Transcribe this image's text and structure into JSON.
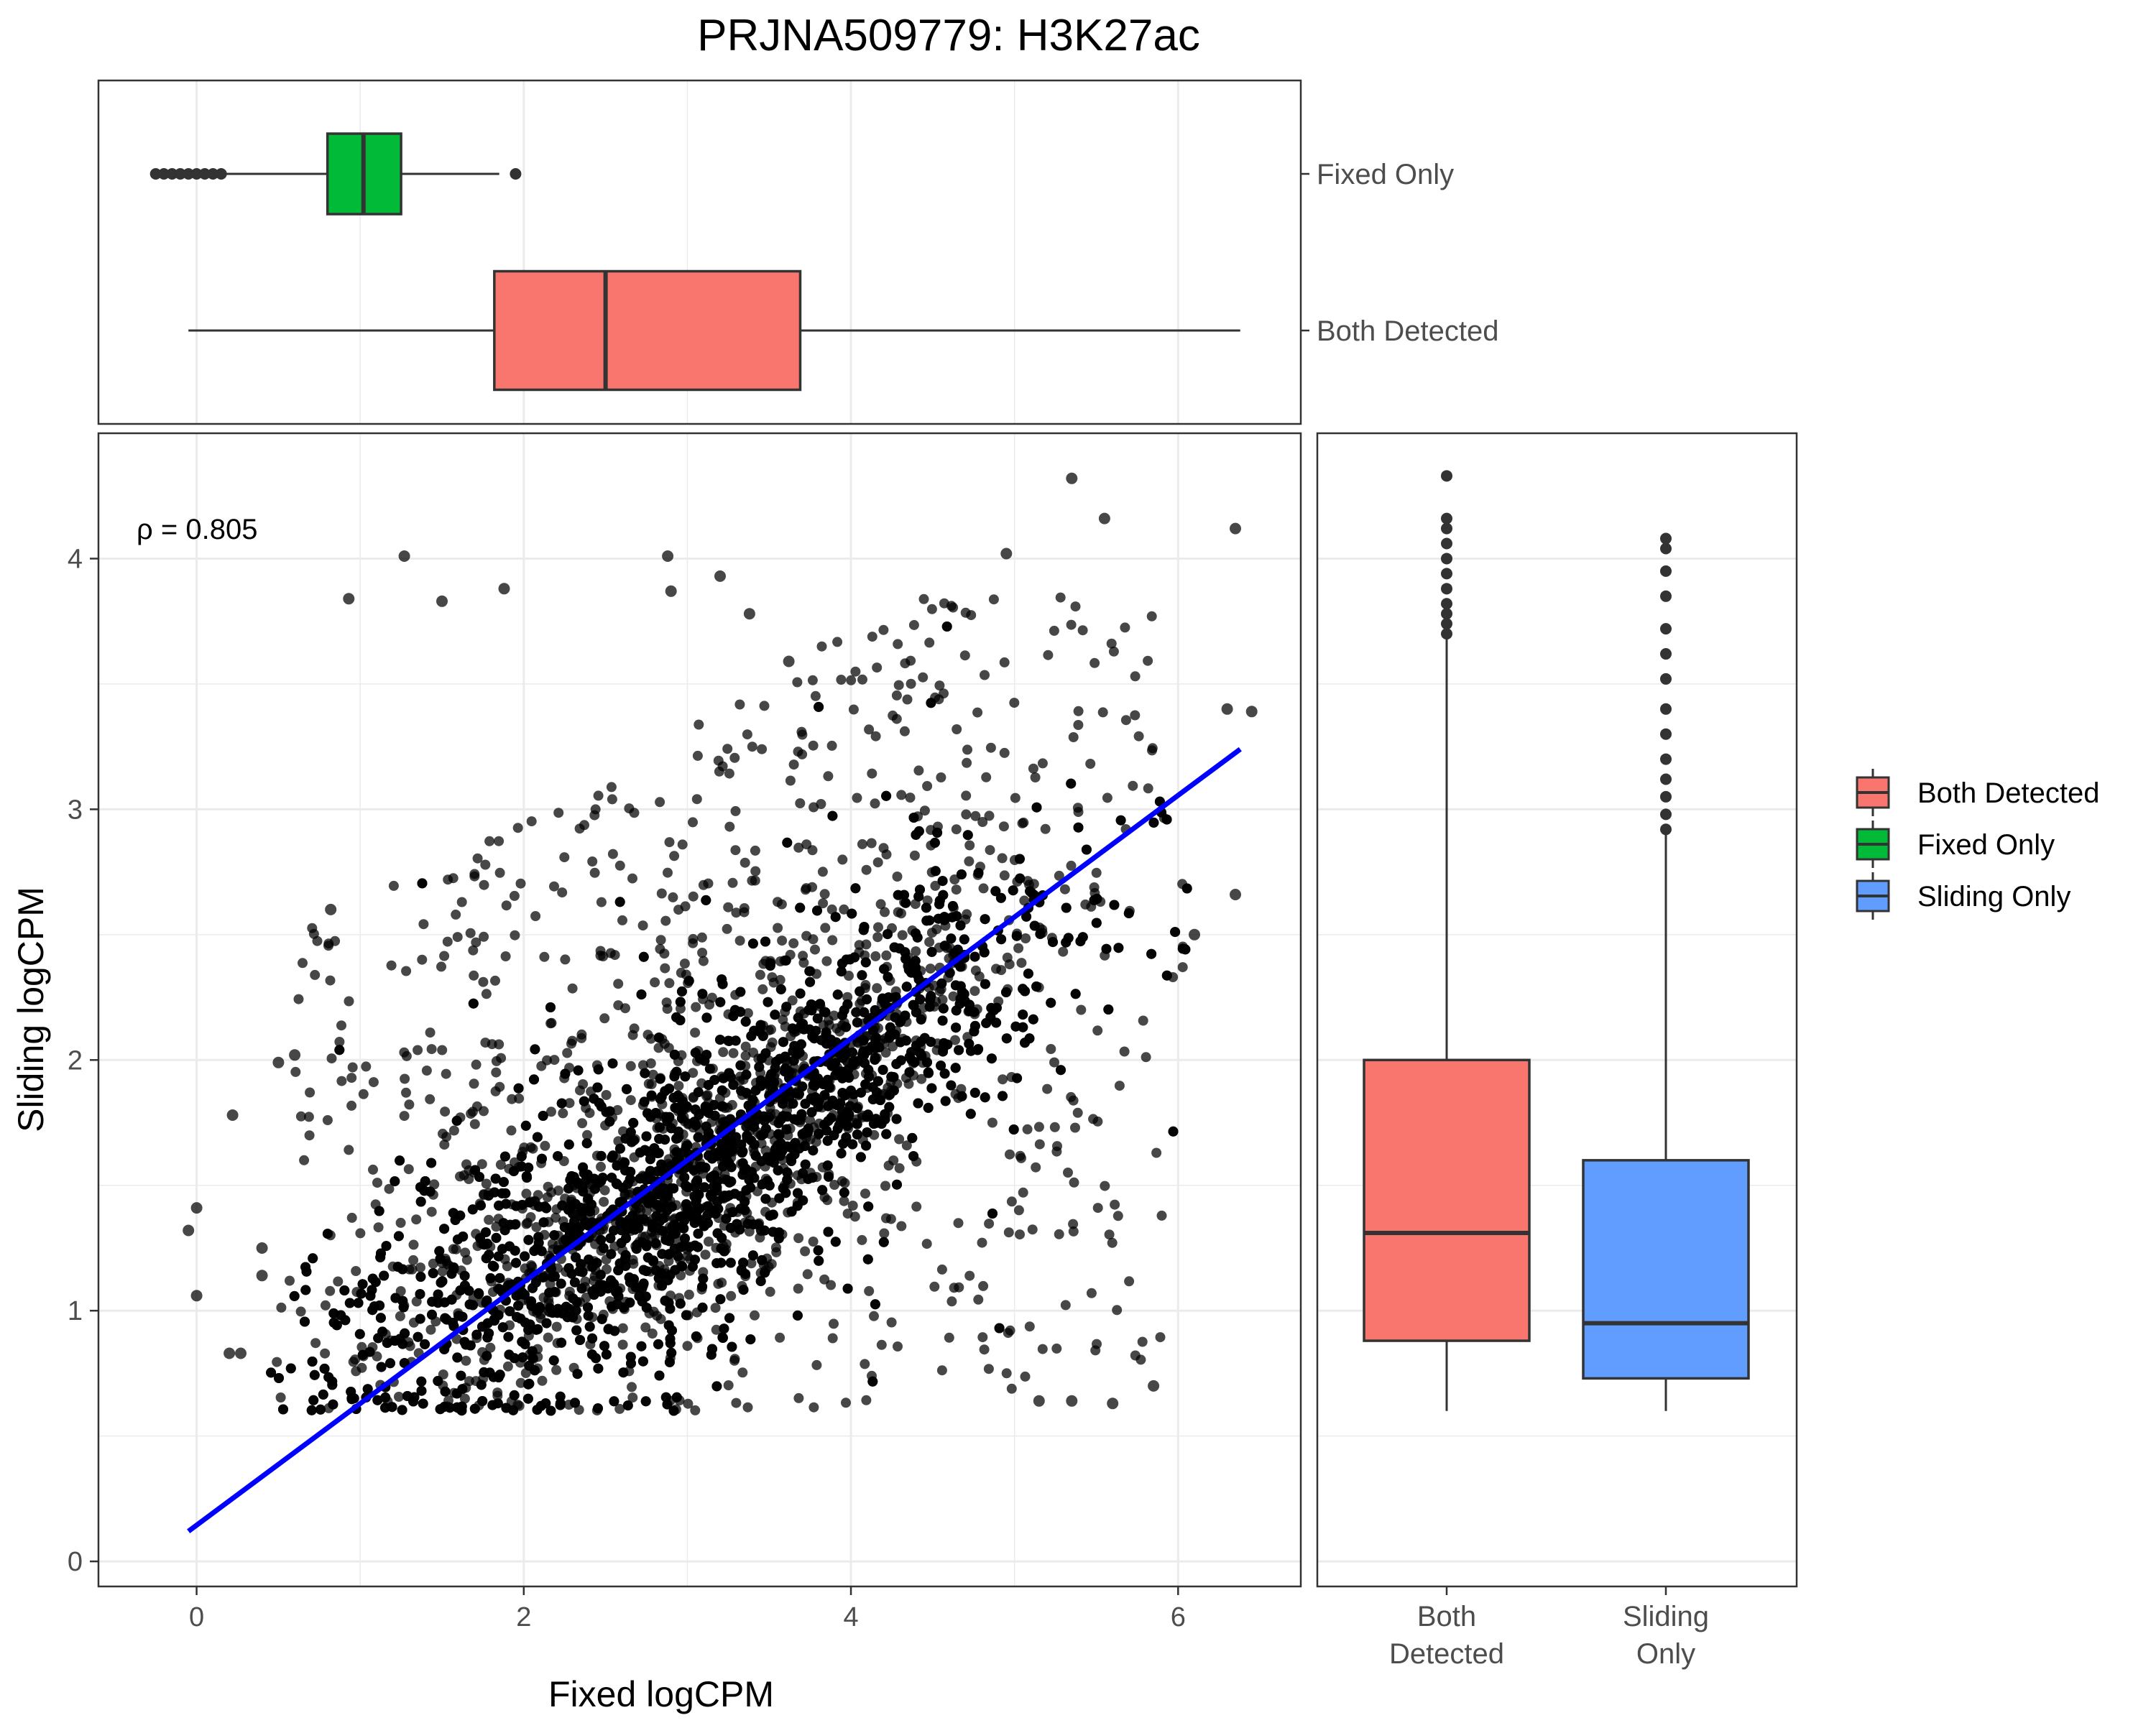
{
  "title": "PRJNA509779: H3K27ac",
  "colors": {
    "both_detected": "#F8766D",
    "fixed_only": "#00BA38",
    "sliding_only": "#619CFF",
    "points": "#000000",
    "fit_line": "#0000FF",
    "grid": "#EBEBEB",
    "panel_border": "#333333"
  },
  "annotation": {
    "text": "ρ = 0.805"
  },
  "legend": {
    "position": "right",
    "items": [
      {
        "label": "Both Detected",
        "color": "#F8766D"
      },
      {
        "label": "Fixed Only",
        "color": "#00BA38"
      },
      {
        "label": "Sliding Only",
        "color": "#619CFF"
      }
    ]
  },
  "chart_data": [
    {
      "id": "scatter",
      "type": "scatter",
      "xlabel": "Fixed logCPM",
      "ylabel": "Sliding logCPM",
      "xlim": [
        -0.6,
        6.75
      ],
      "ylim": [
        -0.1,
        4.5
      ],
      "xticks": [
        0,
        2,
        4,
        6
      ],
      "yticks": [
        0,
        1,
        2,
        3,
        4
      ],
      "grid": true,
      "point_count_approx": 60000,
      "density_trend": {
        "x": [
          0.5,
          1.5,
          2.5,
          3.5,
          4.5,
          5.5
        ],
        "y_center": [
          0.75,
          1.0,
          1.3,
          1.75,
          2.25,
          2.6
        ]
      },
      "example_points": [
        {
          "x": -0.05,
          "y": 1.32
        },
        {
          "x": 0.0,
          "y": 1.41
        },
        {
          "x": 0.0,
          "y": 1.06
        },
        {
          "x": 0.22,
          "y": 1.78
        },
        {
          "x": 0.2,
          "y": 0.83
        },
        {
          "x": 0.27,
          "y": 0.83
        },
        {
          "x": 0.4,
          "y": 1.25
        },
        {
          "x": 0.4,
          "y": 1.14
        },
        {
          "x": 0.5,
          "y": 1.99
        },
        {
          "x": 0.6,
          "y": 2.02
        },
        {
          "x": 0.82,
          "y": 2.6
        },
        {
          "x": 1.27,
          "y": 4.01
        },
        {
          "x": 0.93,
          "y": 3.84
        },
        {
          "x": 1.5,
          "y": 3.83
        },
        {
          "x": 1.88,
          "y": 3.88
        },
        {
          "x": 2.88,
          "y": 4.01
        },
        {
          "x": 2.9,
          "y": 3.87
        },
        {
          "x": 3.2,
          "y": 3.93
        },
        {
          "x": 3.38,
          "y": 3.78
        },
        {
          "x": 3.62,
          "y": 3.59
        },
        {
          "x": 4.95,
          "y": 4.02
        },
        {
          "x": 5.35,
          "y": 4.32
        },
        {
          "x": 5.55,
          "y": 4.16
        },
        {
          "x": 6.35,
          "y": 4.12
        },
        {
          "x": 5.15,
          "y": 0.64
        },
        {
          "x": 5.35,
          "y": 0.64
        },
        {
          "x": 5.6,
          "y": 0.63
        },
        {
          "x": 5.85,
          "y": 0.7
        },
        {
          "x": 6.35,
          "y": 2.66
        },
        {
          "x": 6.1,
          "y": 2.5
        },
        {
          "x": 6.3,
          "y": 3.4
        },
        {
          "x": 6.45,
          "y": 3.39
        }
      ],
      "fit_line": {
        "x": [
          -0.05,
          6.38
        ],
        "y": [
          0.12,
          3.24
        ],
        "color": "#0000FF"
      }
    },
    {
      "id": "top-boxplot",
      "type": "boxplot",
      "orientation": "horizontal",
      "variable": "Fixed logCPM",
      "categories": [
        "Fixed Only",
        "Both Detected"
      ],
      "boxes": [
        {
          "name": "Fixed Only",
          "color": "#00BA38",
          "whisker_low": -0.25,
          "q1": 0.8,
          "median": 1.02,
          "q3": 1.25,
          "whisker_high": 1.85,
          "outliers": [
            -0.25,
            -0.2,
            -0.15,
            -0.1,
            -0.05,
            0.0,
            0.05,
            0.1,
            0.15,
            1.95
          ]
        },
        {
          "name": "Both Detected",
          "color": "#F8766D",
          "whisker_low": -0.05,
          "q1": 1.82,
          "median": 2.5,
          "q3": 3.69,
          "whisker_high": 6.38,
          "outliers": []
        }
      ]
    },
    {
      "id": "right-boxplot",
      "type": "boxplot",
      "orientation": "vertical",
      "variable": "Sliding logCPM",
      "categories": [
        "Both\nDetected",
        "Sliding\nOnly"
      ],
      "boxes": [
        {
          "name": "Both Detected",
          "color": "#F8766D",
          "whisker_low": 0.6,
          "q1": 0.88,
          "median": 1.31,
          "q3": 2.0,
          "whisker_high": 3.68,
          "outliers": [
            3.7,
            3.74,
            3.78,
            3.82,
            3.88,
            3.94,
            4.0,
            4.06,
            4.12,
            4.16,
            4.33
          ]
        },
        {
          "name": "Sliding Only",
          "color": "#619CFF",
          "whisker_low": 0.6,
          "q1": 0.73,
          "median": 0.95,
          "q3": 1.6,
          "whisker_high": 2.9,
          "outliers": [
            2.92,
            2.98,
            3.05,
            3.12,
            3.2,
            3.3,
            3.4,
            3.52,
            3.62,
            3.72,
            3.85,
            3.95,
            4.04,
            4.08
          ]
        }
      ]
    }
  ]
}
